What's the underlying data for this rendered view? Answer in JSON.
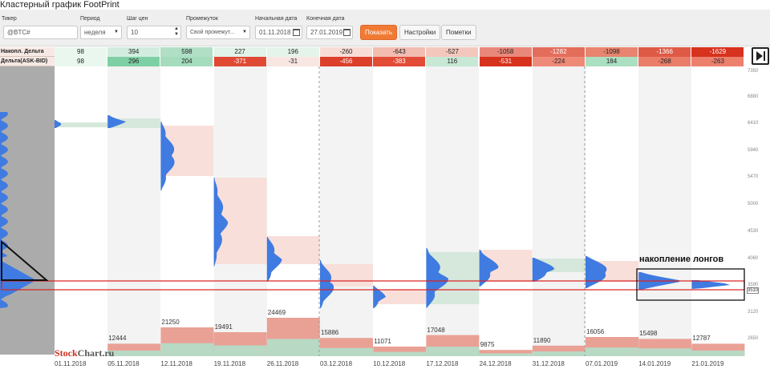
{
  "title": "Кластерный график FootPrint",
  "toolbar": {
    "ticker_label": "Тикер",
    "ticker_placeholder": "@BTC#",
    "period_label": "Период",
    "period_value": "неделя",
    "step_label": "Шаг цен",
    "step_value": "10",
    "range_label": "Промежуток",
    "range_value": "Свой промежут...",
    "start_label": "Начальная дата",
    "start_value": "01.11.2018",
    "end_label": "Конечная дата",
    "end_value": "27.01.2019",
    "show_button": "Показать",
    "settings_button": "Настройки",
    "notes_button": "Пометки"
  },
  "rows": {
    "cum_delta_label": "Накопл. Дельта",
    "delta_label": "Дельта(ASK-BID)"
  },
  "weeks": [
    {
      "date": "01.11.2018",
      "cum": "98",
      "cum_color": "#eaf7ef",
      "delta": "98",
      "delta_color": "#eaf7ef",
      "volume": "",
      "vol_height": 0.0
    },
    {
      "date": "05.11.2018",
      "cum": "394",
      "cum_color": "#d2ede0",
      "delta": "296",
      "delta_color": "#7fcfa4",
      "volume": "12444",
      "vol_height": 0.26
    },
    {
      "date": "12.11.2018",
      "cum": "598",
      "cum_color": "#b0dfc6",
      "delta": "204",
      "delta_color": "#a5dcbd",
      "volume": "21250",
      "vol_height": 0.6
    },
    {
      "date": "19.11.2018",
      "cum": "227",
      "cum_color": "#e2f3e9",
      "delta": "-371",
      "delta_color": "#e04a34",
      "volume": "19491",
      "vol_height": 0.5
    },
    {
      "date": "26.11.2018",
      "cum": "196",
      "cum_color": "#e5f4eb",
      "delta": "-31",
      "delta_color": "#f9e6e2",
      "volume": "24469",
      "vol_height": 0.8
    },
    {
      "date": "03.12.2018",
      "cum": "-260",
      "cum_color": "#f8dcd6",
      "delta": "-456",
      "delta_color": "#dc3f2a",
      "volume": "15886",
      "vol_height": 0.38
    },
    {
      "date": "10.12.2018",
      "cum": "-643",
      "cum_color": "#f2bcb1",
      "delta": "-383",
      "delta_color": "#e24c36",
      "volume": "11071",
      "vol_height": 0.2
    },
    {
      "date": "17.12.2018",
      "cum": "-527",
      "cum_color": "#f4c7bd",
      "delta": "116",
      "delta_color": "#c6e8d4",
      "volume": "17048",
      "vol_height": 0.44
    },
    {
      "date": "24.12.2018",
      "cum": "-1058",
      "cum_color": "#e9887a",
      "delta": "-531",
      "delta_color": "#d6321e",
      "volume": "9875",
      "vol_height": 0.13
    },
    {
      "date": "31.12.2018",
      "cum": "-1282",
      "cum_color": "#e36d5b",
      "delta": "-224",
      "delta_color": "#ee8a78",
      "volume": "11890",
      "vol_height": 0.22
    },
    {
      "date": "07.01.2019",
      "cum": "-1098",
      "cum_color": "#e8846f",
      "delta": "184",
      "delta_color": "#aadfc1",
      "volume": "16056",
      "vol_height": 0.4
    },
    {
      "date": "14.01.2019",
      "cum": "-1366",
      "cum_color": "#df5a45",
      "delta": "-268",
      "delta_color": "#ea7d69",
      "volume": "15498",
      "vol_height": 0.36
    },
    {
      "date": "21.01.2019",
      "cum": "-1629",
      "cum_color": "#d6321e",
      "delta": "-263",
      "delta_color": "#ec806d",
      "volume": "12787",
      "vol_height": 0.26
    }
  ],
  "price_axis": [
    "7350",
    "6880",
    "6410",
    "5940",
    "5470",
    "5000",
    "4530",
    "4060",
    "3590",
    "3510",
    "3120",
    "2650"
  ],
  "annotation": "накопление лонгов",
  "logo": {
    "part1": "Stock",
    "part2": "Chart.ru"
  },
  "colors": {
    "accent": "#f07a34",
    "bull": "#c9e3d4",
    "bear": "#f8dad4",
    "profile": "#3f7be0",
    "highlight": "#d92020"
  }
}
